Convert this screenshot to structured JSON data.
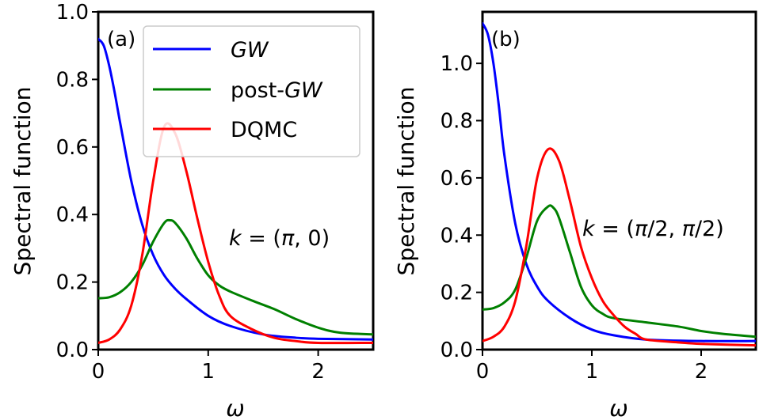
{
  "chart_data": [
    {
      "type": "line",
      "panel_label": "(a)",
      "annotation": "k = (π, 0)",
      "xlabel": "ω",
      "ylabel": "Spectral function",
      "xlim": [
        0,
        2.5
      ],
      "ylim": [
        0,
        1.0
      ],
      "xticks": [
        "0",
        "1",
        "2"
      ],
      "yticks": [
        "0.0",
        "0.2",
        "0.4",
        "0.6",
        "0.8",
        "1.0"
      ],
      "legend": {
        "placement": "upper-center",
        "entries": [
          {
            "name_prefix": "",
            "name_italic": "GW",
            "color": "#0000ff"
          },
          {
            "name_prefix": "post-",
            "name_italic": "GW",
            "color": "#008000"
          },
          {
            "name_prefix": "DQMC",
            "name_italic": "",
            "color": "#ff0000"
          }
        ]
      },
      "series": [
        {
          "name": "GW",
          "color": "#0000ff",
          "x": [
            0,
            0.05,
            0.1,
            0.15,
            0.2,
            0.3,
            0.4,
            0.5,
            0.6,
            0.7,
            0.8,
            1.0,
            1.2,
            1.5,
            1.8,
            2.0,
            2.5
          ],
          "y": [
            0.92,
            0.9,
            0.84,
            0.76,
            0.67,
            0.5,
            0.37,
            0.28,
            0.22,
            0.18,
            0.15,
            0.1,
            0.07,
            0.045,
            0.035,
            0.032,
            0.03
          ]
        },
        {
          "name": "post-GW",
          "color": "#008000",
          "x": [
            0,
            0.1,
            0.2,
            0.3,
            0.4,
            0.5,
            0.6,
            0.65,
            0.7,
            0.8,
            0.9,
            1.0,
            1.1,
            1.2,
            1.4,
            1.6,
            1.8,
            2.0,
            2.2,
            2.5
          ],
          "y": [
            0.152,
            0.155,
            0.17,
            0.2,
            0.25,
            0.32,
            0.375,
            0.383,
            0.375,
            0.33,
            0.27,
            0.22,
            0.19,
            0.172,
            0.145,
            0.12,
            0.09,
            0.065,
            0.05,
            0.045
          ]
        },
        {
          "name": "DQMC",
          "color": "#ff0000",
          "x": [
            0,
            0.1,
            0.2,
            0.3,
            0.4,
            0.5,
            0.6,
            0.7,
            0.8,
            0.9,
            1.0,
            1.1,
            1.2,
            1.4,
            1.6,
            1.8,
            2.0,
            2.5
          ],
          "y": [
            0.02,
            0.03,
            0.06,
            0.13,
            0.28,
            0.5,
            0.66,
            0.64,
            0.53,
            0.39,
            0.26,
            0.16,
            0.1,
            0.06,
            0.035,
            0.025,
            0.02,
            0.02
          ]
        }
      ]
    },
    {
      "type": "line",
      "panel_label": "(b)",
      "annotation": "k = (π/2, π/2)",
      "xlabel": "ω",
      "ylabel": "Spectral function",
      "xlim": [
        0,
        2.5
      ],
      "ylim": [
        0,
        1.18
      ],
      "xticks": [
        "0",
        "1",
        "2"
      ],
      "yticks": [
        "0.0",
        "0.2",
        "0.4",
        "0.6",
        "0.8",
        "1.0"
      ],
      "series": [
        {
          "name": "GW",
          "color": "#0000ff",
          "x": [
            0,
            0.05,
            0.1,
            0.15,
            0.2,
            0.3,
            0.4,
            0.5,
            0.6,
            0.8,
            1.0,
            1.2,
            1.5,
            2.0,
            2.5
          ],
          "y": [
            1.14,
            1.1,
            1.0,
            0.85,
            0.68,
            0.44,
            0.3,
            0.22,
            0.17,
            0.11,
            0.07,
            0.05,
            0.035,
            0.03,
            0.03
          ]
        },
        {
          "name": "post-GW",
          "color": "#008000",
          "x": [
            0,
            0.1,
            0.2,
            0.3,
            0.4,
            0.5,
            0.6,
            0.65,
            0.7,
            0.8,
            0.9,
            1.0,
            1.1,
            1.2,
            1.5,
            1.8,
            2.0,
            2.2,
            2.5
          ],
          "y": [
            0.14,
            0.145,
            0.165,
            0.21,
            0.32,
            0.45,
            0.5,
            0.495,
            0.46,
            0.34,
            0.22,
            0.155,
            0.125,
            0.11,
            0.095,
            0.08,
            0.065,
            0.055,
            0.045
          ]
        },
        {
          "name": "DQMC",
          "color": "#ff0000",
          "x": [
            0,
            0.1,
            0.2,
            0.3,
            0.4,
            0.5,
            0.6,
            0.7,
            0.8,
            0.9,
            1.0,
            1.1,
            1.2,
            1.3,
            1.4,
            1.5,
            1.8,
            2.0,
            2.5
          ],
          "y": [
            0.03,
            0.045,
            0.08,
            0.17,
            0.36,
            0.6,
            0.7,
            0.66,
            0.52,
            0.36,
            0.25,
            0.17,
            0.12,
            0.08,
            0.055,
            0.035,
            0.025,
            0.02,
            0.015
          ]
        }
      ]
    }
  ]
}
